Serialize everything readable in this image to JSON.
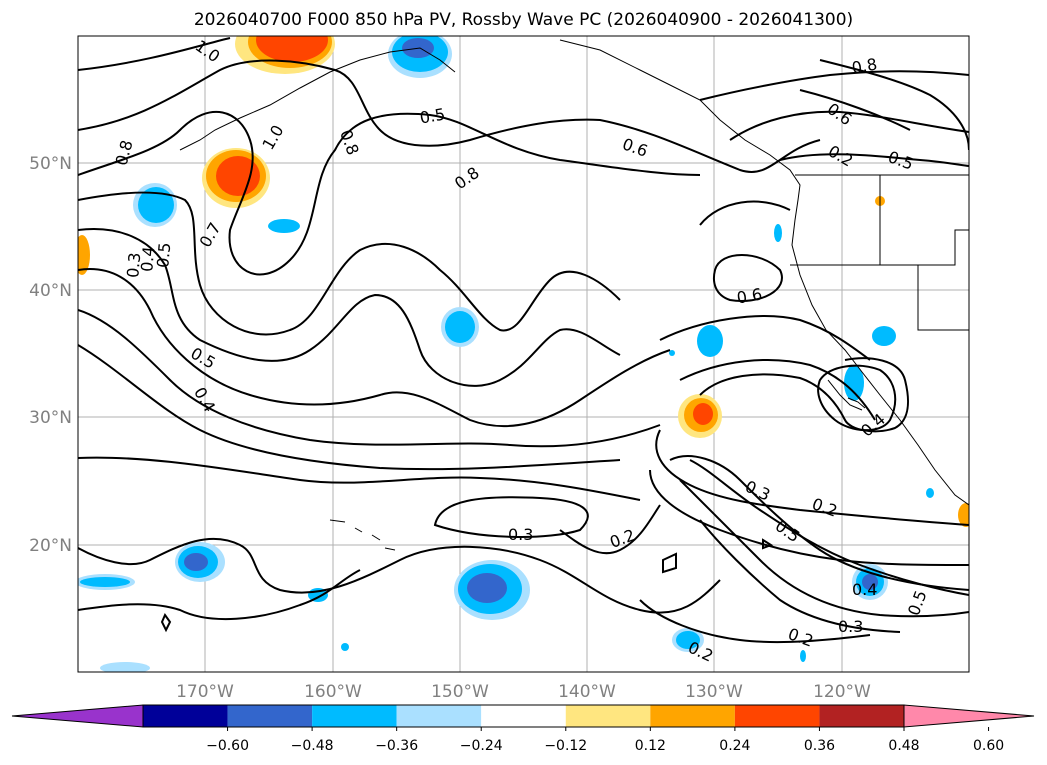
{
  "title": "2026040700 F000 850 hPa PV, Rossby Wave PC (2026040900 - 2026041300)",
  "axes": {
    "lon_labels": [
      "170°W",
      "160°W",
      "150°W",
      "140°W",
      "130°W",
      "120°W"
    ],
    "lat_labels": [
      "50°N",
      "40°N",
      "30°N",
      "20°N"
    ]
  },
  "colorbar": {
    "colors": [
      "#9933cc",
      "#000099",
      "#3366cc",
      "#00bbff",
      "#aae0ff",
      "#ffffff",
      "#ffe680",
      "#ffa500",
      "#ff4500",
      "#b22222",
      "#ff88aa"
    ],
    "tick_labels": [
      "−0.60",
      "−0.48",
      "−0.36",
      "−0.24",
      "−0.12",
      "0.12",
      "0.24",
      "0.36",
      "0.48",
      "0.60"
    ]
  },
  "contour_labels": [
    "1.0",
    "0.8",
    "0.8",
    "1.0",
    "0.5",
    "0.8",
    "0.6",
    "0.8",
    "0.6",
    "0.2",
    "0.5",
    "0.7",
    "0.3",
    "0.4",
    "0.5",
    "0.6",
    "0.5",
    "0.4",
    "0.4",
    "0.3",
    "0.2",
    "0.5",
    "0.3",
    "0.2",
    "0.4",
    "0.5",
    "0.3",
    "0.2",
    "0.2"
  ]
}
